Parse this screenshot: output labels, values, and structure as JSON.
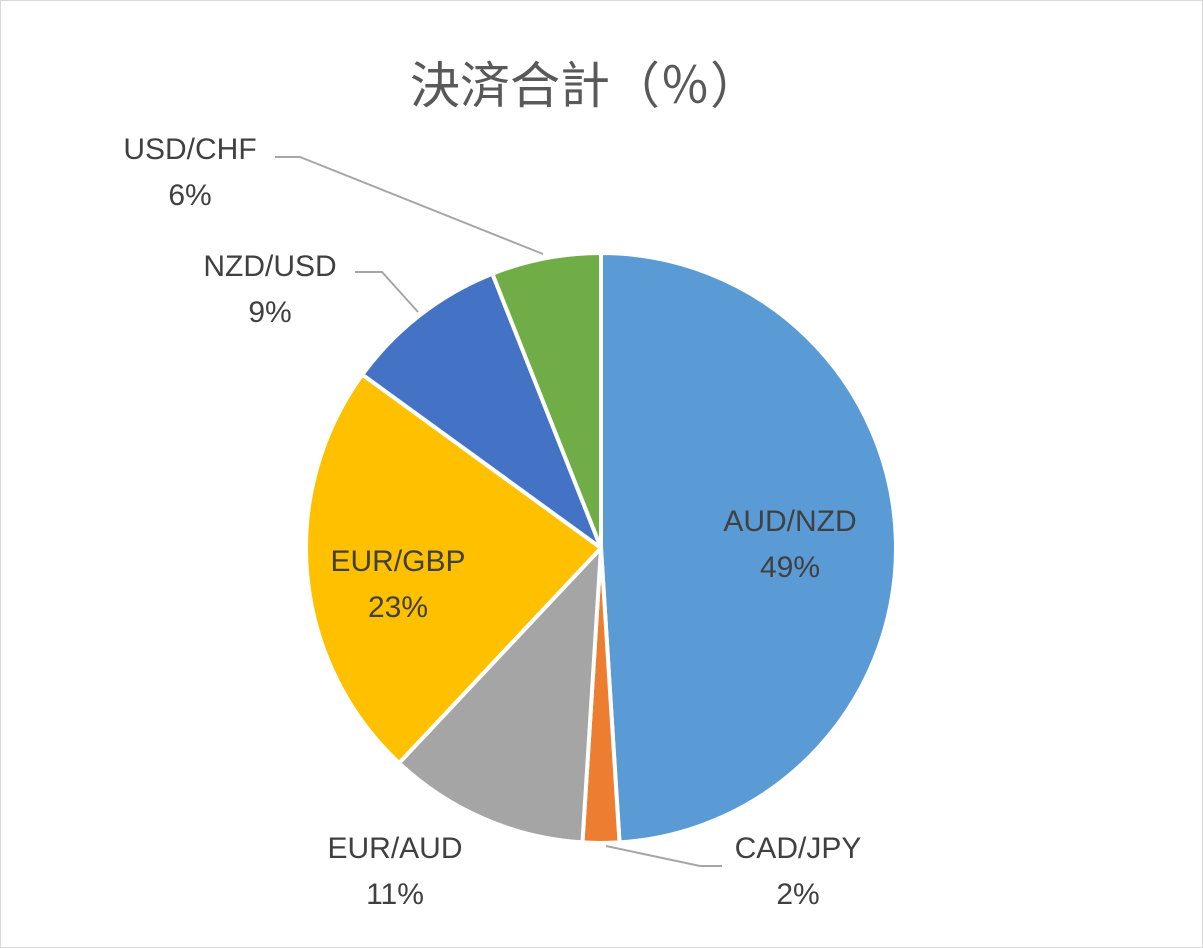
{
  "chart_data": {
    "type": "pie",
    "title": "決済合計（％）",
    "categories": [
      "AUD/NZD",
      "CAD/JPY",
      "EUR/AUD",
      "EUR/GBP",
      "NZD/USD",
      "USD/CHF"
    ],
    "values": [
      49,
      2,
      11,
      23,
      9,
      6
    ],
    "value_labels": [
      "49%",
      "2%",
      "11%",
      "23%",
      "9%",
      "6%"
    ],
    "colors": [
      "#5b9bd5",
      "#ed7d31",
      "#a5a5a5",
      "#ffc000",
      "#4472c4",
      "#70ad47"
    ]
  }
}
